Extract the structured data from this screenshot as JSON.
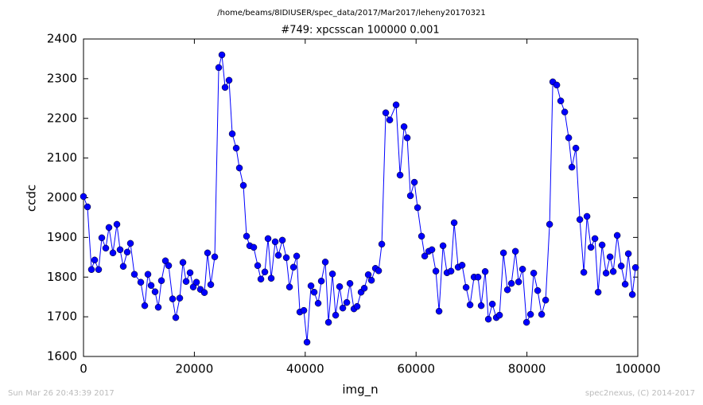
{
  "chart_data": {
    "type": "line",
    "suptitle": "/home/beams/8IDIUSER/spec_data/2017/Mar2017/leheny20170321",
    "title": "#749: xpcsscan 100000 0.001",
    "xlabel": "img_n",
    "ylabel": "ccdc",
    "footer_left": "Sun Mar 26 20:43:39 2017",
    "footer_right": "spec2nexus, (C) 2014-2017",
    "xlim": [
      0,
      100000
    ],
    "xticks": [
      0,
      20000,
      40000,
      60000,
      80000,
      100000
    ],
    "ylim": [
      1600,
      2400
    ],
    "yticks": [
      1600,
      1700,
      1800,
      1900,
      2000,
      2100,
      2200,
      2300,
      2400
    ],
    "x": [
      0,
      717,
      1435,
      2009,
      2726,
      3300,
      4018,
      4592,
      5310,
      6027,
      6601,
      7175,
      7893,
      8467,
      9184,
      10332,
      11050,
      11624,
      12198,
      12915,
      13489,
      14063,
      14781,
      15355,
      16072,
      16646,
      17364,
      17938,
      18512,
      19229,
      19803,
      20377,
      21095,
      21812,
      22386,
      22960,
      23678,
      24395,
      24969,
      25543,
      26261,
      26835,
      27552,
      28126,
      28844,
      29418,
      29992,
      30709,
      31427,
      32001,
      32718,
      33292,
      33866,
      34584,
      35158,
      35875,
      36593,
      37167,
      37884,
      38458,
      39032,
      39750,
      40324,
      41041,
      41615,
      42333,
      42907,
      43624,
      44198,
      44916,
      45490,
      46207,
      46781,
      47499,
      48073,
      48790,
      49364,
      50082,
      50656,
      51373,
      51947,
      52665,
      53239,
      53813,
      54530,
      55248,
      56396,
      57113,
      57831,
      58405,
      58979,
      59696,
      60270,
      60988,
      61562,
      62279,
      62853,
      63571,
      64145,
      64862,
      65580,
      66297,
      66871,
      67589,
      68306,
      69024,
      69741,
      70459,
      71176,
      71750,
      72468,
      73042,
      73759,
      74477,
      75051,
      75768,
      76486,
      77203,
      77921,
      78495,
      79212,
      79930,
      80647,
      81221,
      81939,
      82656,
      83374,
      84091,
      84665,
      85383,
      86100,
      86818,
      87535,
      88109,
      88827,
      89544,
      90262,
      90836,
      91553,
      92271,
      92845,
      93562,
      94280,
      94997,
      95571,
      96289,
      97006,
      97724,
      98298,
      99015,
      99589
    ],
    "series": [
      {
        "name": "ccdc",
        "color": "#0000ff",
        "values": [
          2003,
          1977,
          1819,
          1843,
          1819,
          1899,
          1873,
          1925,
          1861,
          1933,
          1869,
          1827,
          1863,
          1885,
          1807,
          1787,
          1728,
          1807,
          1779,
          1763,
          1724,
          1791,
          1841,
          1829,
          1745,
          1698,
          1747,
          1837,
          1789,
          1811,
          1775,
          1787,
          1769,
          1761,
          1861,
          1781,
          1851,
          2328,
          2360,
          2278,
          2296,
          2161,
          2125,
          2075,
          2031,
          1903,
          1879,
          1875,
          1829,
          1795,
          1813,
          1897,
          1797,
          1889,
          1855,
          1893,
          1849,
          1775,
          1825,
          1853,
          1712,
          1716,
          1636,
          1778,
          1762,
          1734,
          1790,
          1838,
          1686,
          1808,
          1704,
          1776,
          1722,
          1736,
          1784,
          1720,
          1726,
          1762,
          1772,
          1806,
          1792,
          1822,
          1816,
          1883,
          2214,
          2196,
          2234,
          2057,
          2179,
          2151,
          2005,
          2039,
          1975,
          1903,
          1853,
          1865,
          1869,
          1815,
          1714,
          1879,
          1811,
          1815,
          1937,
          1825,
          1830,
          1774,
          1730,
          1800,
          1800,
          1728,
          1814,
          1694,
          1732,
          1698,
          1704,
          1861,
          1768,
          1784,
          1865,
          1788,
          1820,
          1686,
          1706,
          1810,
          1766,
          1706,
          1742,
          1933,
          2292,
          2284,
          2244,
          2216,
          2151,
          2077,
          2125,
          1945,
          1812,
          1953,
          1875,
          1897,
          1762,
          1881,
          1810,
          1851,
          1814,
          1905,
          1828,
          1782,
          1859,
          1756,
          1824
        ]
      }
    ]
  }
}
